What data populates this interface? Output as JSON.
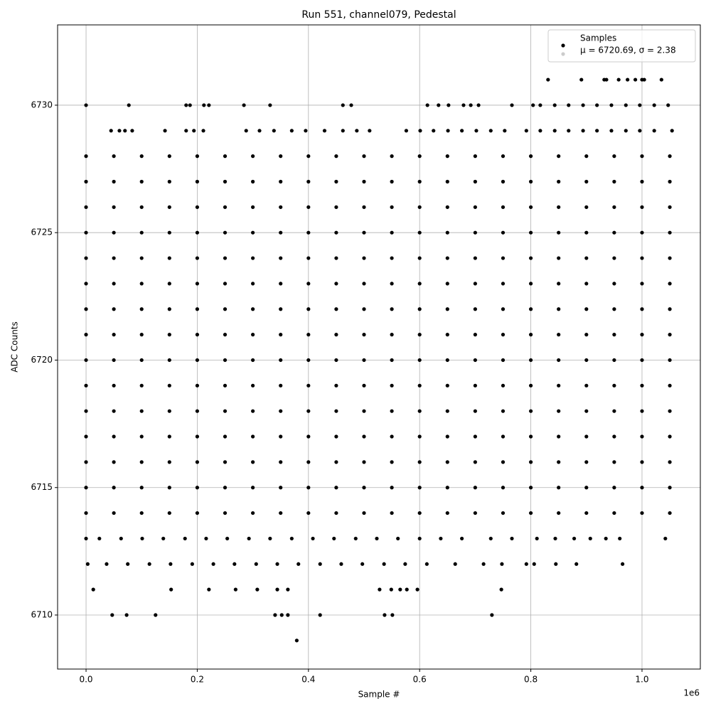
{
  "chart_data": {
    "type": "scatter",
    "title": "Run 551, channel079, Pedestal",
    "x_label": "Sample #",
    "y_label": "ADC Counts",
    "x_offset_label": "1e6",
    "xlim": [
      -51200,
      1104900
    ],
    "ylim": [
      6707.88,
      6733.15
    ],
    "xticks": [
      {
        "value": 0,
        "label": "0.0"
      },
      {
        "value": 200000,
        "label": "0.2"
      },
      {
        "value": 400000,
        "label": "0.4"
      },
      {
        "value": 600000,
        "label": "0.6"
      },
      {
        "value": 800000,
        "label": "0.8"
      },
      {
        "value": 1000000,
        "label": "1.0"
      }
    ],
    "yticks": [
      6710,
      6715,
      6720,
      6725,
      6730
    ],
    "grid": true,
    "legend": "upper right",
    "series": [
      {
        "name": "Samples",
        "color": "#000000",
        "x": [
          0,
          50000,
          100000,
          150000,
          200000,
          250000,
          300000,
          350000,
          400000,
          450000,
          500000,
          550000,
          600000,
          650000,
          700000,
          750000,
          800000,
          850000,
          900000,
          950000,
          1000000,
          1050000,
          0,
          50000,
          100000,
          150000,
          200000,
          250000,
          300000,
          350000,
          400000,
          450000,
          500000,
          550000,
          600000,
          650000,
          700000,
          750000,
          800000,
          850000,
          900000,
          950000,
          1000000,
          1050000,
          0,
          50000,
          100000,
          150000,
          200000,
          250000,
          300000,
          350000,
          400000,
          450000,
          500000,
          550000,
          600000,
          650000,
          700000,
          750000,
          800000,
          850000,
          900000,
          950000,
          1000000,
          1050000,
          0,
          50000,
          100000,
          150000,
          200000,
          250000,
          300000,
          350000,
          400000,
          450000,
          500000,
          550000,
          600000,
          650000,
          700000,
          750000,
          800000,
          850000,
          900000,
          950000,
          1000000,
          1050000,
          0,
          50000,
          100000,
          150000,
          200000,
          250000,
          300000,
          350000,
          400000,
          450000,
          500000,
          550000,
          600000,
          650000,
          700000,
          750000,
          800000,
          850000,
          900000,
          950000,
          1000000,
          1050000,
          0,
          50000,
          100000,
          150000,
          200000,
          250000,
          300000,
          350000,
          400000,
          450000,
          500000,
          550000,
          600000,
          650000,
          700000,
          750000,
          800000,
          850000,
          900000,
          950000,
          1000000,
          1050000,
          0,
          50000,
          100000,
          150000,
          200000,
          250000,
          300000,
          350000,
          400000,
          450000,
          500000,
          550000,
          600000,
          650000,
          700000,
          750000,
          800000,
          850000,
          900000,
          950000,
          1000000,
          1050000,
          0,
          50000,
          100000,
          150000,
          200000,
          250000,
          300000,
          350000,
          400000,
          450000,
          500000,
          550000,
          600000,
          650000,
          700000,
          750000,
          800000,
          850000,
          900000,
          950000,
          1000000,
          1050000,
          0,
          50000,
          100000,
          150000,
          200000,
          250000,
          300000,
          350000,
          400000,
          450000,
          500000,
          550000,
          600000,
          650000,
          700000,
          750000,
          800000,
          850000,
          900000,
          950000,
          1000000,
          1050000,
          0,
          50000,
          100000,
          150000,
          200000,
          250000,
          300000,
          350000,
          400000,
          450000,
          500000,
          550000,
          600000,
          650000,
          700000,
          750000,
          800000,
          850000,
          900000,
          950000,
          1000000,
          1050000,
          0,
          50000,
          100000,
          150000,
          200000,
          250000,
          300000,
          350000,
          400000,
          450000,
          500000,
          550000,
          600000,
          650000,
          700000,
          750000,
          800000,
          850000,
          900000,
          950000,
          1000000,
          1050000,
          0,
          50000,
          100000,
          150000,
          200000,
          250000,
          300000,
          350000,
          400000,
          450000,
          500000,
          550000,
          600000,
          650000,
          700000,
          750000,
          800000,
          850000,
          900000,
          950000,
          1000000,
          1050000,
          0,
          50000,
          100000,
          150000,
          200000,
          250000,
          300000,
          350000,
          400000,
          450000,
          500000,
          550000,
          600000,
          650000,
          700000,
          750000,
          800000,
          850000,
          900000,
          950000,
          1000000,
          1050000,
          0,
          50000,
          100000,
          150000,
          200000,
          250000,
          300000,
          350000,
          400000,
          450000,
          500000,
          550000,
          600000,
          650000,
          700000,
          750000,
          800000,
          850000,
          900000,
          950000,
          1000000,
          1050000,
          0,
          50000,
          100000,
          150000,
          200000,
          250000,
          300000,
          350000,
          400000,
          450000,
          500000,
          550000,
          600000,
          650000,
          700000,
          750000,
          800000,
          850000,
          900000,
          950000,
          1000000,
          1050000,
          831000,
          891000,
          932000,
          936000,
          958000,
          974000,
          988000,
          1000000,
          1004000,
          1035000,
          0,
          77000,
          180000,
          187000,
          212000,
          221000,
          284000,
          331000,
          462000,
          477000,
          614000,
          634000,
          652000,
          679000,
          692000,
          706000,
          766000,
          804000,
          817000,
          843000,
          868000,
          894000,
          919000,
          945000,
          971000,
          996000,
          1022000,
          1047000,
          45000,
          60000,
          70000,
          83000,
          142000,
          180000,
          194000,
          211000,
          288000,
          312000,
          338000,
          370000,
          395000,
          429000,
          462000,
          487000,
          510000,
          576000,
          601000,
          625000,
          651000,
          676000,
          702000,
          728000,
          753000,
          792000,
          817000,
          843000,
          868000,
          894000,
          919000,
          945000,
          971000,
          996000,
          1022000,
          1054000,
          0,
          24000,
          63000,
          101000,
          139000,
          178000,
          216000,
          254000,
          293000,
          331000,
          370000,
          408000,
          446000,
          485000,
          523000,
          561000,
          600000,
          638000,
          676000,
          728000,
          766000,
          811000,
          844000,
          878000,
          907000,
          935000,
          960000,
          1042000,
          3000,
          37000,
          75000,
          114000,
          152000,
          191000,
          229000,
          267000,
          306000,
          344000,
          382000,
          421000,
          459000,
          497000,
          536000,
          574000,
          613000,
          664000,
          715000,
          748000,
          792000,
          806000,
          845000,
          882000,
          965000,
          13000,
          153000,
          221000,
          269000,
          308000,
          344000,
          363000,
          528000,
          549000,
          565000,
          577000,
          596000,
          747000,
          47000,
          73000,
          125000,
          340000,
          352000,
          363000,
          421000,
          537000,
          551000,
          730000,
          379000
        ],
        "y": [
          6714,
          6714,
          6714,
          6714,
          6714,
          6714,
          6714,
          6714,
          6714,
          6714,
          6714,
          6714,
          6714,
          6714,
          6714,
          6714,
          6714,
          6714,
          6714,
          6714,
          6714,
          6714,
          6715,
          6715,
          6715,
          6715,
          6715,
          6715,
          6715,
          6715,
          6715,
          6715,
          6715,
          6715,
          6715,
          6715,
          6715,
          6715,
          6715,
          6715,
          6715,
          6715,
          6715,
          6715,
          6716,
          6716,
          6716,
          6716,
          6716,
          6716,
          6716,
          6716,
          6716,
          6716,
          6716,
          6716,
          6716,
          6716,
          6716,
          6716,
          6716,
          6716,
          6716,
          6716,
          6716,
          6716,
          6717,
          6717,
          6717,
          6717,
          6717,
          6717,
          6717,
          6717,
          6717,
          6717,
          6717,
          6717,
          6717,
          6717,
          6717,
          6717,
          6717,
          6717,
          6717,
          6717,
          6717,
          6717,
          6718,
          6718,
          6718,
          6718,
          6718,
          6718,
          6718,
          6718,
          6718,
          6718,
          6718,
          6718,
          6718,
          6718,
          6718,
          6718,
          6718,
          6718,
          6718,
          6718,
          6718,
          6718,
          6719,
          6719,
          6719,
          6719,
          6719,
          6719,
          6719,
          6719,
          6719,
          6719,
          6719,
          6719,
          6719,
          6719,
          6719,
          6719,
          6719,
          6719,
          6719,
          6719,
          6719,
          6719,
          6720,
          6720,
          6720,
          6720,
          6720,
          6720,
          6720,
          6720,
          6720,
          6720,
          6720,
          6720,
          6720,
          6720,
          6720,
          6720,
          6720,
          6720,
          6720,
          6720,
          6720,
          6720,
          6721,
          6721,
          6721,
          6721,
          6721,
          6721,
          6721,
          6721,
          6721,
          6721,
          6721,
          6721,
          6721,
          6721,
          6721,
          6721,
          6721,
          6721,
          6721,
          6721,
          6721,
          6721,
          6722,
          6722,
          6722,
          6722,
          6722,
          6722,
          6722,
          6722,
          6722,
          6722,
          6722,
          6722,
          6722,
          6722,
          6722,
          6722,
          6722,
          6722,
          6722,
          6722,
          6722,
          6722,
          6723,
          6723,
          6723,
          6723,
          6723,
          6723,
          6723,
          6723,
          6723,
          6723,
          6723,
          6723,
          6723,
          6723,
          6723,
          6723,
          6723,
          6723,
          6723,
          6723,
          6723,
          6723,
          6724,
          6724,
          6724,
          6724,
          6724,
          6724,
          6724,
          6724,
          6724,
          6724,
          6724,
          6724,
          6724,
          6724,
          6724,
          6724,
          6724,
          6724,
          6724,
          6724,
          6724,
          6724,
          6725,
          6725,
          6725,
          6725,
          6725,
          6725,
          6725,
          6725,
          6725,
          6725,
          6725,
          6725,
          6725,
          6725,
          6725,
          6725,
          6725,
          6725,
          6725,
          6725,
          6725,
          6725,
          6726,
          6726,
          6726,
          6726,
          6726,
          6726,
          6726,
          6726,
          6726,
          6726,
          6726,
          6726,
          6726,
          6726,
          6726,
          6726,
          6726,
          6726,
          6726,
          6726,
          6726,
          6726,
          6727,
          6727,
          6727,
          6727,
          6727,
          6727,
          6727,
          6727,
          6727,
          6727,
          6727,
          6727,
          6727,
          6727,
          6727,
          6727,
          6727,
          6727,
          6727,
          6727,
          6727,
          6727,
          6728,
          6728,
          6728,
          6728,
          6728,
          6728,
          6728,
          6728,
          6728,
          6728,
          6728,
          6728,
          6728,
          6728,
          6728,
          6728,
          6728,
          6728,
          6728,
          6728,
          6728,
          6728,
          6731,
          6731,
          6731,
          6731,
          6731,
          6731,
          6731,
          6731,
          6731,
          6731,
          6730,
          6730,
          6730,
          6730,
          6730,
          6730,
          6730,
          6730,
          6730,
          6730,
          6730,
          6730,
          6730,
          6730,
          6730,
          6730,
          6730,
          6730,
          6730,
          6730,
          6730,
          6730,
          6730,
          6730,
          6730,
          6730,
          6730,
          6730,
          6729,
          6729,
          6729,
          6729,
          6729,
          6729,
          6729,
          6729,
          6729,
          6729,
          6729,
          6729,
          6729,
          6729,
          6729,
          6729,
          6729,
          6729,
          6729,
          6729,
          6729,
          6729,
          6729,
          6729,
          6729,
          6729,
          6729,
          6729,
          6729,
          6729,
          6729,
          6729,
          6729,
          6729,
          6729,
          6729,
          6713,
          6713,
          6713,
          6713,
          6713,
          6713,
          6713,
          6713,
          6713,
          6713,
          6713,
          6713,
          6713,
          6713,
          6713,
          6713,
          6713,
          6713,
          6713,
          6713,
          6713,
          6713,
          6713,
          6713,
          6713,
          6713,
          6713,
          6713,
          6712,
          6712,
          6712,
          6712,
          6712,
          6712,
          6712,
          6712,
          6712,
          6712,
          6712,
          6712,
          6712,
          6712,
          6712,
          6712,
          6712,
          6712,
          6712,
          6712,
          6712,
          6712,
          6712,
          6712,
          6712,
          6711,
          6711,
          6711,
          6711,
          6711,
          6711,
          6711,
          6711,
          6711,
          6711,
          6711,
          6711,
          6711,
          6710,
          6710,
          6710,
          6710,
          6710,
          6710,
          6710,
          6710,
          6710,
          6710,
          6709
        ]
      },
      {
        "name": "μ = 6720.69, σ = 2.38",
        "color": "#cccccc",
        "x": [],
        "y": []
      }
    ]
  }
}
